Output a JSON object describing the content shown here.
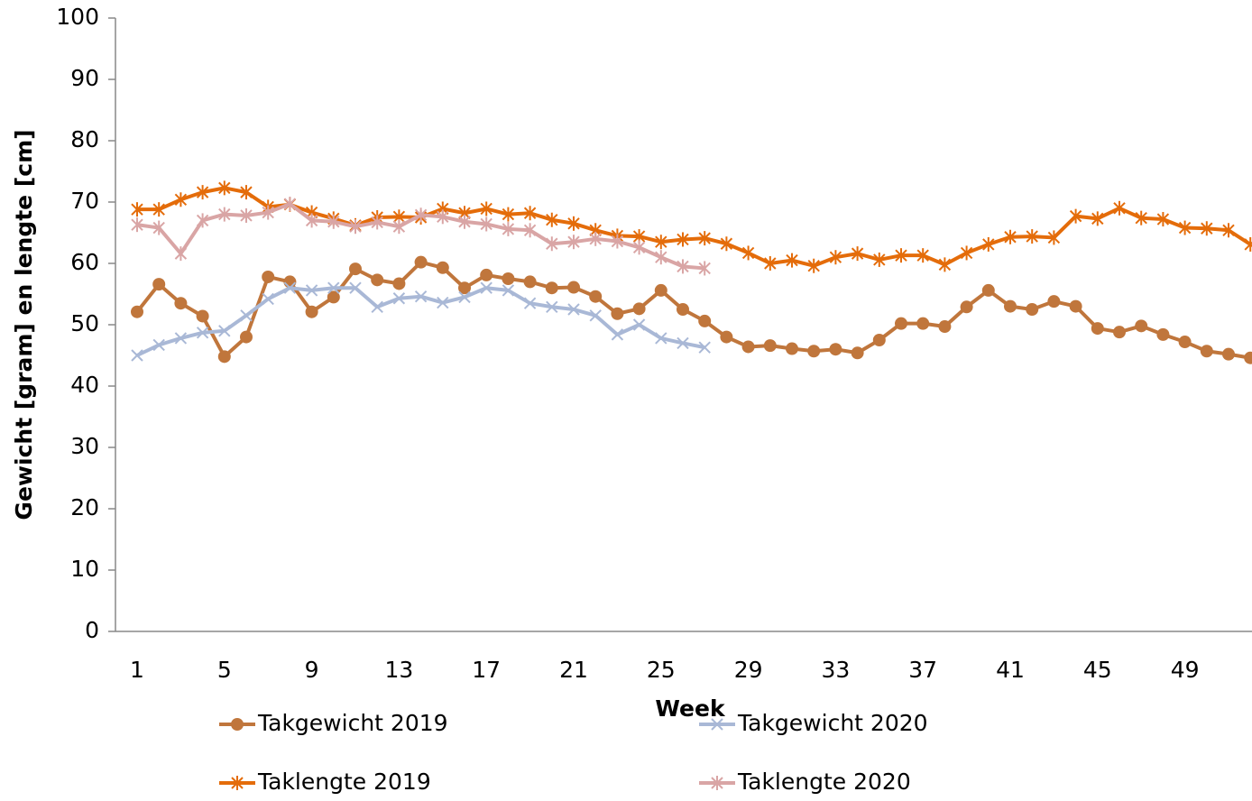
{
  "chart_data": {
    "type": "line",
    "x_label": "Week",
    "y_label": "Gewicht [gram] en lengte [cm]",
    "categories": [
      "1",
      null,
      null,
      null,
      "5",
      null,
      null,
      null,
      "9",
      null,
      null,
      null,
      "13",
      null,
      null,
      null,
      "17",
      null,
      null,
      null,
      "21",
      null,
      null,
      null,
      "25",
      null,
      null,
      null,
      "29",
      null,
      null,
      null,
      "33",
      null,
      null,
      null,
      "37",
      null,
      null,
      null,
      "41",
      null,
      null,
      null,
      "45",
      null,
      null,
      null,
      "49",
      null,
      null,
      null
    ],
    "ylim": [
      0,
      100
    ],
    "yticks": [
      0,
      10,
      20,
      30,
      40,
      50,
      60,
      70,
      80,
      90,
      100
    ],
    "series": [
      {
        "name": "Takgewicht 2019",
        "color": "#c0763c",
        "marker": "circle",
        "values": [
          52.1,
          56.6,
          53.5,
          51.4,
          44.8,
          48.0,
          57.8,
          57.0,
          52.1,
          54.5,
          59.1,
          57.3,
          56.7,
          60.2,
          59.3,
          56.0,
          58.1,
          57.5,
          57.0,
          56.0,
          56.1,
          54.6,
          51.8,
          52.6,
          55.6,
          52.5,
          50.6,
          48.0,
          46.4,
          46.6,
          46.1,
          45.7,
          46.0,
          45.4,
          47.5,
          50.2,
          50.2,
          49.7,
          52.9,
          55.6,
          53.0,
          52.5,
          53.8,
          53.0,
          49.4,
          48.8,
          49.8,
          48.4,
          47.2,
          45.7,
          45.2,
          44.6
        ]
      },
      {
        "name": "Takgewicht 2020",
        "color": "#a9b8d6",
        "marker": "x",
        "values": [
          45.0,
          46.7,
          47.8,
          48.7,
          49.0,
          51.5,
          54.2,
          56.0,
          55.6,
          56.0,
          56.0,
          52.9,
          54.3,
          54.6,
          53.6,
          54.5,
          56.0,
          55.6,
          53.5,
          52.9,
          52.5,
          51.5,
          48.4,
          50.0,
          47.8,
          47.0,
          46.3,
          null,
          null,
          null,
          null,
          null,
          null,
          null,
          null,
          null,
          null,
          null,
          null,
          null,
          null,
          null,
          null,
          null,
          null,
          null,
          null,
          null,
          null,
          null,
          null,
          null
        ]
      },
      {
        "name": "Taklengte 2019",
        "color": "#e46c0a",
        "marker": "star",
        "values": [
          68.8,
          68.8,
          70.4,
          71.6,
          72.3,
          71.6,
          69.2,
          69.6,
          68.3,
          67.3,
          66.2,
          67.5,
          67.6,
          67.5,
          68.9,
          68.2,
          68.9,
          68.0,
          68.2,
          67.1,
          66.5,
          65.4,
          64.5,
          64.4,
          63.5,
          63.9,
          64.1,
          63.2,
          61.7,
          60.0,
          60.5,
          59.6,
          61.0,
          61.6,
          60.6,
          61.3,
          61.3,
          59.8,
          61.7,
          63.1,
          64.3,
          64.4,
          64.2,
          67.7,
          67.3,
          69.0,
          67.4,
          67.2,
          65.8,
          65.7,
          65.4,
          63.1
        ]
      },
      {
        "name": "Taklengte 2020",
        "color": "#d9a5a5",
        "marker": "star",
        "values": [
          66.3,
          65.8,
          61.6,
          67.0,
          68.0,
          67.8,
          68.3,
          69.7,
          67.0,
          66.8,
          66.0,
          66.7,
          66.0,
          67.9,
          67.6,
          66.8,
          66.4,
          65.6,
          65.4,
          63.2,
          63.5,
          64.0,
          63.6,
          62.6,
          61.0,
          59.5,
          59.2,
          null,
          null,
          null,
          null,
          null,
          null,
          null,
          null,
          null,
          null,
          null,
          null,
          null,
          null,
          null,
          null,
          null,
          null,
          null,
          null,
          null,
          null,
          null,
          null,
          null
        ]
      }
    ]
  }
}
